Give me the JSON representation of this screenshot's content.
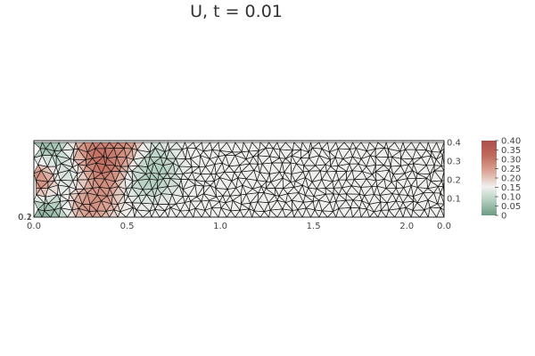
{
  "chart_data": {
    "type": "heatmap",
    "title": "U, t = 0.01",
    "subtitle": "",
    "xlabel": "",
    "ylabel": "",
    "x_ticks": [
      "0.0",
      "0.5",
      "1.0",
      "1.5",
      "2.0",
      "0.0"
    ],
    "y_ticks": [
      "0.1",
      "0.2",
      "0.3",
      "0.4"
    ],
    "y_ticks_left_overlap": [
      "0.2",
      "0.1"
    ],
    "xlim": [
      0.0,
      2.2
    ],
    "ylim": [
      0.0,
      0.41
    ],
    "colorbar": {
      "ticks": [
        "0.40",
        "0.35",
        "0.30",
        "0.25",
        "0.20",
        "0.15",
        "0.10",
        "0.05",
        "0"
      ],
      "range": [
        0,
        0.4
      ],
      "colors": [
        "#6c9a82",
        "#b4cfc0",
        "#f1f1ef",
        "#dba293",
        "#c06a5c",
        "#aa4e4c"
      ]
    },
    "field": {
      "description_values": [
        {
          "x": 0.04,
          "y": 0.38,
          "u": 0.03
        },
        {
          "x": 0.04,
          "y": 0.02,
          "u": 0.02
        },
        {
          "x": 0.01,
          "y": 0.2,
          "u": 0.32
        },
        {
          "x": 0.22,
          "y": 0.22,
          "u": 0.05
        },
        {
          "x": 0.32,
          "y": 0.28,
          "u": 0.38
        },
        {
          "x": 0.45,
          "y": 0.35,
          "u": 0.3
        },
        {
          "x": 0.3,
          "y": 0.12,
          "u": 0.3
        },
        {
          "x": 0.62,
          "y": 0.25,
          "u": 0.06
        },
        {
          "x": 1.2,
          "y": 0.2,
          "u": 0.15
        },
        {
          "x": 2.0,
          "y": 0.2,
          "u": 0.15
        }
      ],
      "background": 0.15
    }
  }
}
